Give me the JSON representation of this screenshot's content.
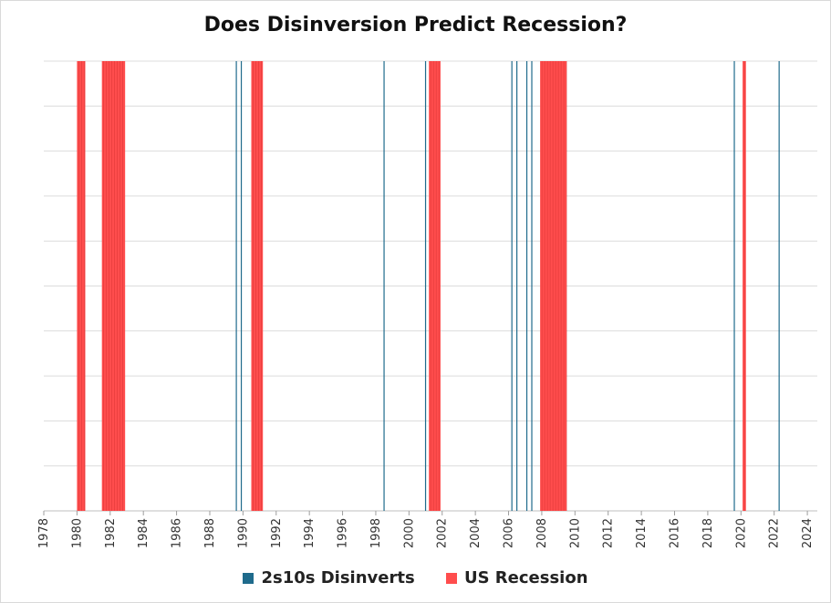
{
  "chart_data": {
    "type": "bar",
    "title": "Does Disinversion Predict Recession?",
    "xlabel": "",
    "ylabel": "",
    "xlim": [
      1978,
      2024.6
    ],
    "x_ticks": [
      "1978",
      "1980",
      "1982",
      "1984",
      "1986",
      "1988",
      "1990",
      "1992",
      "1994",
      "1996",
      "1998",
      "2000",
      "2002",
      "2004",
      "2006",
      "2008",
      "2010",
      "2012",
      "2014",
      "2016",
      "2018",
      "2020",
      "2022",
      "2024"
    ],
    "grid": true,
    "legend_position": "bottom",
    "series": [
      {
        "name": "2s10s Disinverts",
        "color": "#1f6b8c",
        "dates": [
          1989.6,
          1989.9,
          1998.5,
          2001.0,
          2006.2,
          2006.5,
          2007.1,
          2007.4,
          2019.6,
          2022.3
        ]
      },
      {
        "name": "US Recession",
        "color": "#ff4d4d",
        "periods": [
          [
            1980.0,
            1980.5
          ],
          [
            1981.5,
            1982.9
          ],
          [
            1990.5,
            1991.2
          ],
          [
            2001.2,
            2001.9
          ],
          [
            2007.9,
            2009.5
          ],
          [
            2020.1,
            2020.3
          ]
        ]
      }
    ]
  }
}
